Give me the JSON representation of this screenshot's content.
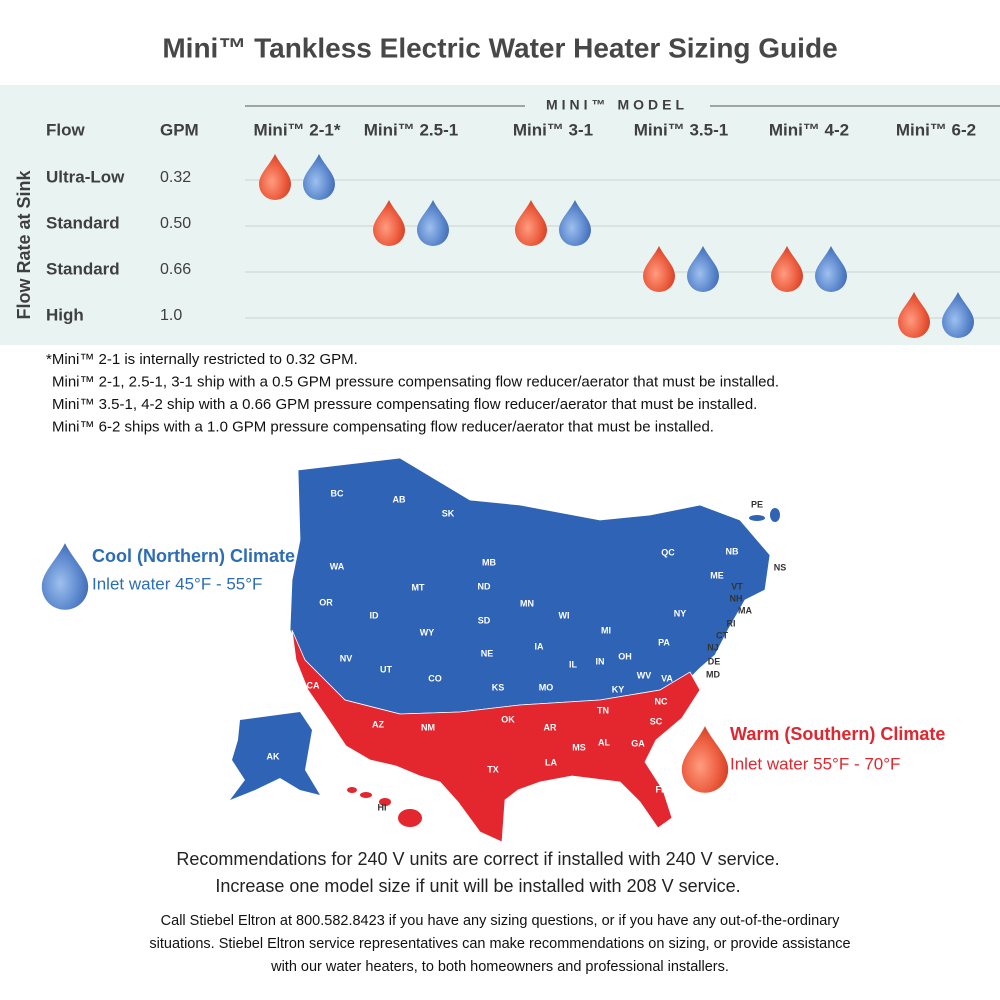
{
  "title": "Mini™ Tankless Electric Water Heater Sizing Guide",
  "table": {
    "group_label": "MINI™ MODEL",
    "side_label": "Flow Rate at Sink",
    "columns": [
      "Flow",
      "GPM",
      "Mini™ 2-1*",
      "Mini™ 2.5-1",
      "Mini™ 3-1",
      "Mini™ 3.5-1",
      "Mini™ 4-2",
      "Mini™ 6-2"
    ],
    "rows": [
      {
        "flow": "Ultra-Low",
        "gpm": "0.32",
        "recommended": [
          true,
          false,
          false,
          false,
          false,
          false
        ]
      },
      {
        "flow": "Standard",
        "gpm": "0.50",
        "recommended": [
          false,
          true,
          true,
          false,
          false,
          false
        ]
      },
      {
        "flow": "Standard",
        "gpm": "0.66",
        "recommended": [
          false,
          false,
          false,
          true,
          true,
          false
        ]
      },
      {
        "flow": "High",
        "gpm": "1.0",
        "recommended": [
          false,
          false,
          false,
          false,
          false,
          true
        ]
      }
    ]
  },
  "notes": [
    "*Mini™ 2-1 is internally restricted to 0.32 GPM.",
    "Mini™ 2-1, 2.5-1, 3-1 ship with a 0.5 GPM pressure compensating flow reducer/aerator that must be installed.",
    "Mini™ 3.5-1, 4-2 ship with a 0.66 GPM pressure compensating flow reducer/aerator that must be installed.",
    "Mini™ 6-2 ships with a 1.0 GPM pressure compensating flow reducer/aerator that must be installed."
  ],
  "map": {
    "cool": {
      "title": "Cool (Northern) Climate",
      "subtitle": "Inlet water 45°F - 55°F"
    },
    "warm": {
      "title": "Warm (Southern) Climate",
      "subtitle": "Inlet water 55°F - 70°F"
    },
    "labels": [
      "BC",
      "AB",
      "SK",
      "MB",
      "QC",
      "NB",
      "NS",
      "PE",
      "ME",
      "VT",
      "NH",
      "MA",
      "RI",
      "CT",
      "NJ",
      "DE",
      "MD",
      "NY",
      "PA",
      "WA",
      "OR",
      "ID",
      "MT",
      "WY",
      "ND",
      "SD",
      "NE",
      "MN",
      "WI",
      "MI",
      "IA",
      "IL",
      "IN",
      "OH",
      "NV",
      "UT",
      "CO",
      "KS",
      "MO",
      "KY",
      "WV",
      "VA",
      "CA",
      "AZ",
      "NM",
      "OK",
      "AR",
      "TN",
      "NC",
      "SC",
      "MS",
      "AL",
      "GA",
      "LA",
      "TX",
      "FL",
      "AK",
      "HI"
    ]
  },
  "footer": {
    "recommendations": [
      "Recommendations for 240 V units are correct if installed with 240 V service.",
      "Increase one model size if unit will be installed with 208 V service."
    ],
    "contact": [
      "Call Stiebel Eltron at 800.582.8423 if you have any sizing questions, or if you have any out-of-the-ordinary",
      "situations. Stiebel Eltron service representatives can make recommendations on sizing, or provide assistance",
      "with our water heaters, to both homeowners and professional installers."
    ]
  }
}
